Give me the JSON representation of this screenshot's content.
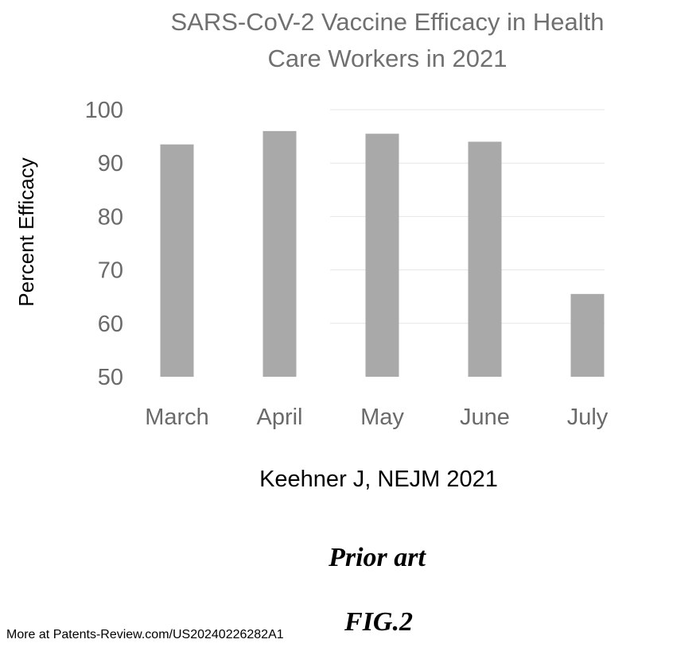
{
  "chart_data": {
    "type": "bar",
    "title": [
      "SARS-CoV-2 Vaccine Efficacy in Health",
      "Care Workers in 2021"
    ],
    "ylabel": "Percent Efficacy",
    "xlabel": "Keehner J, NEJM 2021",
    "categories": [
      "March",
      "April",
      "May",
      "June",
      "July"
    ],
    "values": [
      93.5,
      96,
      95.5,
      94,
      65.5
    ],
    "ylim": [
      50,
      100
    ],
    "yticks": [
      50,
      60,
      70,
      80,
      90,
      100
    ],
    "grid": true,
    "bar_color": "#a9a9a9",
    "grid_color": "#e6e6e6"
  },
  "caption": {
    "prior_art": "Prior art",
    "figure": "FIG.2"
  },
  "source_note": "More at Patents-Review.com/US20240226282A1"
}
